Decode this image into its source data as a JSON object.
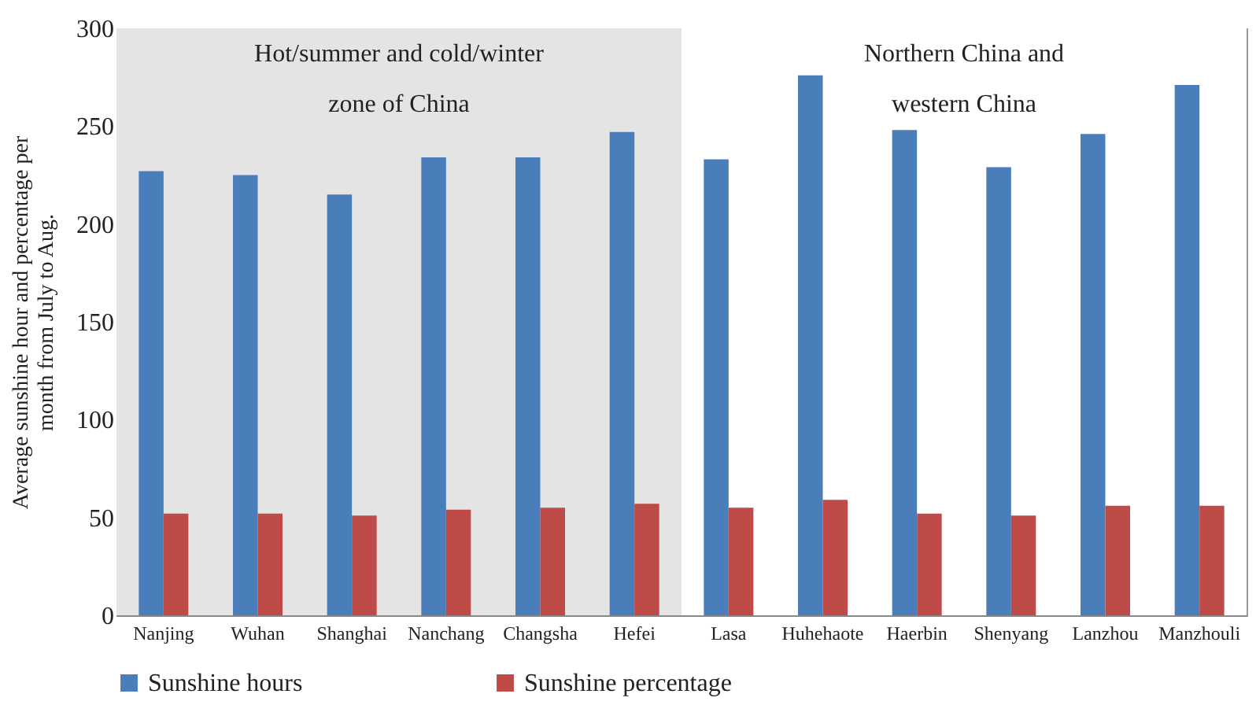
{
  "chart_data": {
    "type": "bar",
    "ylabel": "Average sunshine hour and percentage per month from July to Aug.",
    "categories": [
      "Nanjing",
      "Wuhan",
      "Shanghai",
      "Nanchang",
      "Changsha",
      "Hefei",
      "Lasa",
      "Huhehaote",
      "Haerbin",
      "Shenyang",
      "Lanzhou",
      "Manzhouli"
    ],
    "series": [
      {
        "name": "Sunshine hours",
        "color": "#4a7ebb",
        "values": [
          227,
          225,
          215,
          234,
          234,
          247,
          233,
          276,
          248,
          229,
          246,
          271
        ]
      },
      {
        "name": "Sunshine percentage",
        "color": "#be4b48",
        "values": [
          52,
          52,
          51,
          54,
          55,
          57,
          55,
          59,
          52,
          51,
          56,
          56
        ]
      }
    ],
    "ylim": [
      0,
      300
    ],
    "yticks": [
      0,
      50,
      100,
      150,
      200,
      250,
      300
    ],
    "bands": [
      {
        "axis": "x",
        "from": "Nanjing",
        "to": "Hefei",
        "label": "Hot/summer and cold/winter zone of China",
        "color": "#e4e4e4"
      },
      {
        "axis": "x",
        "from": "Lasa",
        "to": "Manzhouli",
        "label": "Northern China and western China",
        "color": "#ffffff"
      }
    ],
    "legend": "bottom",
    "grid": false
  }
}
